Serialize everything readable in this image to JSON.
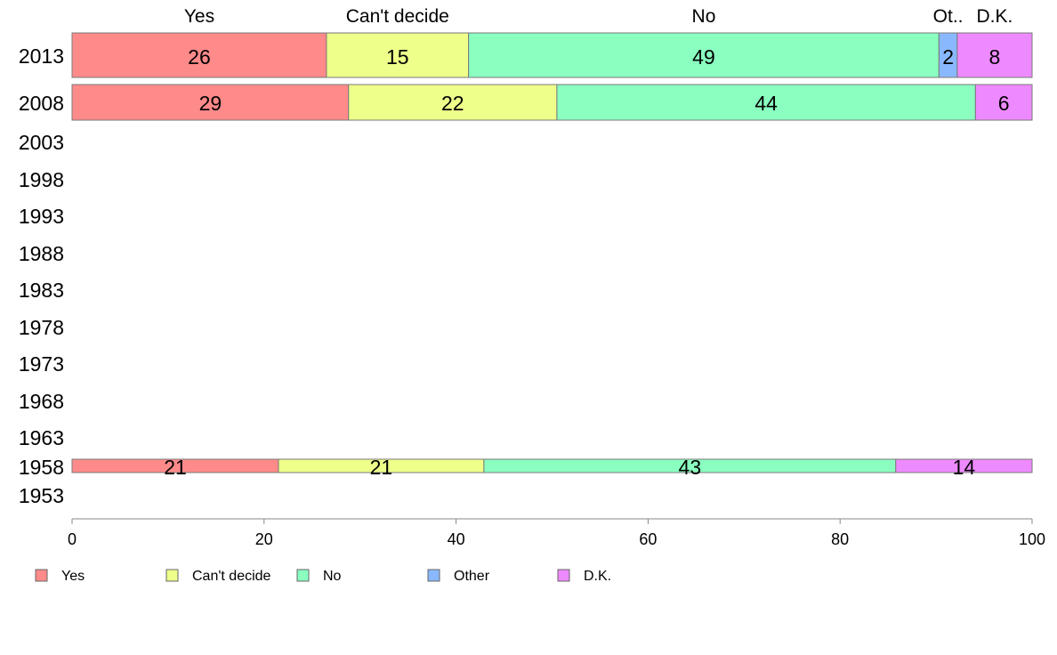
{
  "chart_data": {
    "type": "bar",
    "orientation": "horizontal",
    "stacked": true,
    "title": "",
    "xlabel": "",
    "ylabel": "",
    "xlim": [
      0,
      100
    ],
    "x_ticks": [
      0,
      20,
      40,
      60,
      80,
      100
    ],
    "years": [
      "2013",
      "2008",
      "2003",
      "1998",
      "1993",
      "1988",
      "1983",
      "1978",
      "1973",
      "1968",
      "1963",
      "1958",
      "1953"
    ],
    "column_labels": [
      "Yes",
      "Can't decide",
      "No",
      "Ot..",
      "D.K."
    ],
    "series": [
      {
        "name": "Yes",
        "color": "#ff8a8a"
      },
      {
        "name": "Can't decide",
        "color": "#eeff8a"
      },
      {
        "name": "No",
        "color": "#8affc0"
      },
      {
        "name": "Other",
        "color": "#8ab8ff"
      },
      {
        "name": "D.K.",
        "color": "#ee8aff"
      }
    ],
    "bars": [
      {
        "year": "2013",
        "values": [
          26.5,
          14.8,
          49.0,
          1.9,
          7.8
        ],
        "labels": [
          "26",
          "15",
          "49",
          "2",
          "8"
        ]
      },
      {
        "year": "2008",
        "values": [
          28.8,
          21.7,
          43.6,
          0,
          5.9
        ],
        "labels": [
          "29",
          "22",
          "44",
          "",
          "6"
        ]
      },
      {
        "year": "1958",
        "values": [
          21.5,
          21.4,
          42.9,
          0,
          14.2
        ],
        "labels": [
          "21",
          "21",
          "43",
          "",
          "14"
        ]
      }
    ],
    "legend_position": "bottom",
    "grid": false
  }
}
